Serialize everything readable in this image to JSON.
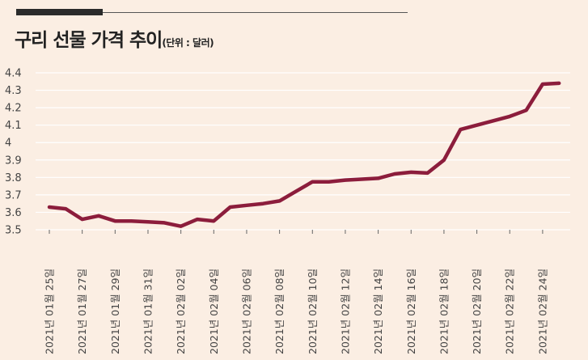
{
  "header": {
    "title": "구리 선물 가격 추이",
    "unit": "(단위 : 달러)"
  },
  "colors": {
    "background": "#fbeee3",
    "line": "#8c1d3c",
    "grid": "#ffffff"
  },
  "chart_data": {
    "type": "line",
    "title": "구리 선물 가격 추이",
    "subtitle": "(단위 : 달러)",
    "xlabel": "",
    "ylabel": "",
    "ylim": [
      3.5,
      4.4
    ],
    "yticks": [
      "3.5",
      "3.6",
      "3.7",
      "3.8",
      "3.9",
      "4",
      "4.1",
      "4.2",
      "4.3",
      "4.4"
    ],
    "grid": true,
    "xtick_labels": [
      "2021년 01월 25일",
      "2021년 01월 27일",
      "2021년 01월 29일",
      "2021년 01월 31일",
      "2021년 02월 02일",
      "2021년 02월 04일",
      "2021년 02월 06일",
      "2021년 02월 08일",
      "2021년 02월 10일",
      "2021년 02월 12일",
      "2021년 02월 14일",
      "2021년 02월 16일",
      "2021년 02월 18일",
      "2021년 02월 20일",
      "2021년 02월 22일",
      "2021년 02월 24일"
    ],
    "x": [
      "2021-01-25",
      "2021-01-26",
      "2021-01-27",
      "2021-01-28",
      "2021-01-29",
      "2021-01-30",
      "2021-01-31",
      "2021-02-01",
      "2021-02-02",
      "2021-02-03",
      "2021-02-04",
      "2021-02-05",
      "2021-02-06",
      "2021-02-07",
      "2021-02-08",
      "2021-02-09",
      "2021-02-10",
      "2021-02-11",
      "2021-02-12",
      "2021-02-13",
      "2021-02-14",
      "2021-02-15",
      "2021-02-16",
      "2021-02-17",
      "2021-02-18",
      "2021-02-19",
      "2021-02-20",
      "2021-02-21",
      "2021-02-22",
      "2021-02-23",
      "2021-02-24",
      "2021-02-25"
    ],
    "series": [
      {
        "values": [
          3.63,
          3.62,
          3.56,
          3.58,
          3.55,
          3.55,
          3.545,
          3.54,
          3.52,
          3.56,
          3.55,
          3.63,
          3.64,
          3.65,
          3.665,
          3.72,
          3.775,
          3.775,
          3.785,
          3.79,
          3.795,
          3.82,
          3.83,
          3.825,
          3.9,
          4.075,
          4.1,
          4.125,
          4.15,
          4.185,
          4.335,
          4.34
        ]
      }
    ]
  }
}
